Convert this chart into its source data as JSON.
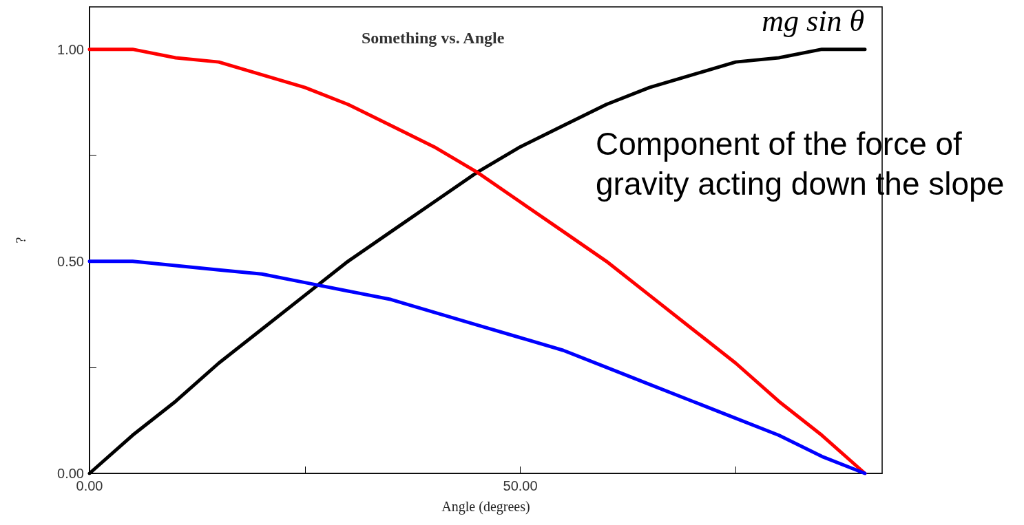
{
  "chart_data": {
    "type": "line",
    "title": "Something vs. Angle",
    "xlabel": "Angle (degrees)",
    "ylabel": "?",
    "x": [
      0,
      5,
      10,
      15,
      20,
      25,
      30,
      35,
      40,
      45,
      50,
      55,
      60,
      65,
      70,
      75,
      80,
      85,
      90
    ],
    "series": [
      {
        "name": "mg sin θ",
        "color": "#000000",
        "values": [
          0,
          0.09,
          0.17,
          0.26,
          0.34,
          0.42,
          0.5,
          0.57,
          0.64,
          0.71,
          0.77,
          0.82,
          0.87,
          0.91,
          0.94,
          0.97,
          0.98,
          1,
          1
        ]
      },
      {
        "color": "#ff0000",
        "values": [
          1,
          1,
          0.98,
          0.97,
          0.94,
          0.91,
          0.87,
          0.82,
          0.77,
          0.71,
          0.64,
          0.57,
          0.5,
          0.42,
          0.34,
          0.26,
          0.17,
          0.09,
          0
        ]
      },
      {
        "color": "#0000ff",
        "values": [
          0.5,
          0.5,
          0.49,
          0.48,
          0.47,
          0.45,
          0.43,
          0.41,
          0.38,
          0.35,
          0.32,
          0.29,
          0.25,
          0.21,
          0.17,
          0.13,
          0.09,
          0.04,
          0
        ]
      }
    ],
    "annotations": [
      "Component of the force of gravity acting down the slope"
    ],
    "xlim": [
      0,
      92
    ],
    "xticks": [
      {
        "value": 0,
        "label": "0.00"
      },
      {
        "value": 25,
        "label": null
      },
      {
        "value": 50,
        "label": "50.00"
      },
      {
        "value": 75,
        "label": null
      }
    ],
    "ylim": [
      0,
      1.1
    ],
    "yticks": [
      {
        "value": 0,
        "label": "0.00"
      },
      {
        "value": 0.25,
        "label": null
      },
      {
        "value": 0.5,
        "label": "0.50"
      },
      {
        "value": 0.75,
        "label": null
      },
      {
        "value": 1,
        "label": "1.00"
      }
    ],
    "grid": false,
    "legend": false,
    "marker": "none",
    "line_style": "solid"
  }
}
